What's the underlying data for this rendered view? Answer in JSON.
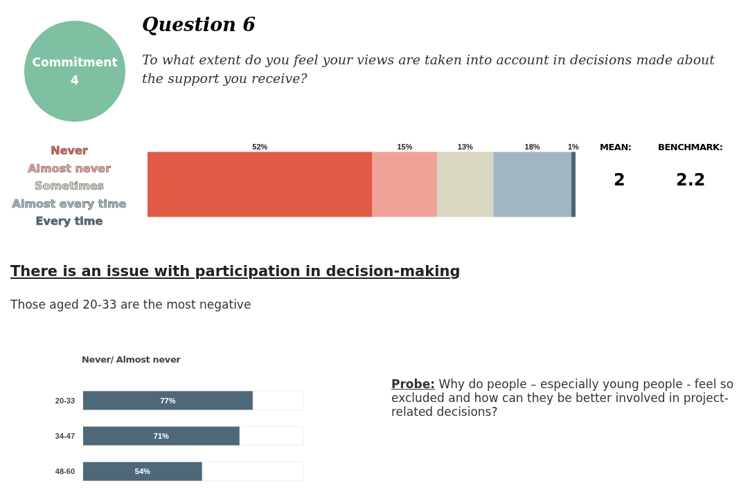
{
  "chart_data": [
    {
      "type": "bar",
      "orientation": "horizontal",
      "stacked": true,
      "title": "Question 6",
      "subtitle": "To what extent do you feel your views are taken into account in decisions made about the support you receive?",
      "categories": [
        null
      ],
      "tick_labels": false,
      "grid": false,
      "legend": "left",
      "series": [
        {
          "name": "Never",
          "color": "#e05a48",
          "values": [
            52
          ],
          "value_labels": [
            "52%"
          ]
        },
        {
          "name": "Almost never",
          "color": "#f0a297",
          "values": [
            15
          ],
          "value_labels": [
            "15%"
          ]
        },
        {
          "name": "Sometimes",
          "color": "#d9d6c2",
          "values": [
            13
          ],
          "value_labels": [
            "13%"
          ]
        },
        {
          "name": "Almost every time",
          "color": "#a2b6c2",
          "values": [
            18
          ],
          "value_labels": [
            "18%"
          ]
        },
        {
          "name": "Every time",
          "color": "#4e6577",
          "values": [
            1
          ],
          "value_labels": [
            "1%"
          ]
        }
      ],
      "annotations": [
        "Commitment 4",
        "MEAN:",
        "2",
        "BENCHMARK:",
        "2.2"
      ]
    },
    {
      "type": "bar",
      "orientation": "horizontal",
      "title": "Never/ Almost never",
      "categories": [
        "20-33",
        "34-47",
        "48-60"
      ],
      "values": [
        77,
        71,
        54
      ],
      "value_labels": [
        "77%",
        "71%",
        "54%"
      ],
      "color": "#4e6878",
      "xlim": [
        0,
        100
      ],
      "tick_labels": "y",
      "grid": false,
      "legend": false,
      "annotations": [
        "There is an issue with participation in decision-making",
        "Those aged 20-33 are the most negative",
        "Probe: Why do people – especially young people - feel so excluded and how can they be better involved in project-related decisions?"
      ]
    }
  ]
}
